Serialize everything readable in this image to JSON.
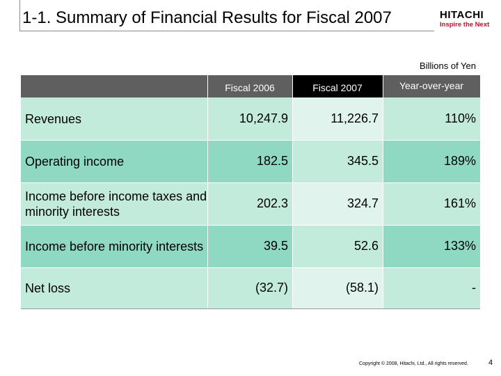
{
  "slide": {
    "title": "1-1. Summary of Financial Results for Fiscal 2007",
    "logo_main": "HITACHI",
    "logo_tagline": "Inspire the Next",
    "unit_label": "Billions of Yen",
    "footer": "Copyright © 2008, Hitachi, Ltd., All rights reserved.",
    "page_number": "4"
  },
  "table": {
    "columns": [
      "Fiscal 2006",
      "Fiscal 2007",
      "Year-over-year"
    ],
    "rows": [
      {
        "label": "Revenues",
        "fy2006": "10,247.9",
        "fy2007": "11,226.7",
        "yoy": "110%"
      },
      {
        "label": "Operating income",
        "fy2006": "182.5",
        "fy2007": "345.5",
        "yoy": "189%"
      },
      {
        "label": "Income before income taxes and minority interests",
        "fy2006": "202.3",
        "fy2007": "324.7",
        "yoy": "161%"
      },
      {
        "label": "Income before minority interests",
        "fy2006": "39.5",
        "fy2007": "52.6",
        "yoy": "133%"
      },
      {
        "label": "Net loss",
        "fy2006": "(32.7)",
        "fy2007": "(58.1)",
        "yoy": "-"
      }
    ]
  },
  "colors": {
    "header_dark": "#5f5f5f",
    "header_black": "#000000",
    "row_light": "#c3ebdc",
    "row_mid": "#8fd9c2",
    "brand_red": "#c8102e"
  }
}
